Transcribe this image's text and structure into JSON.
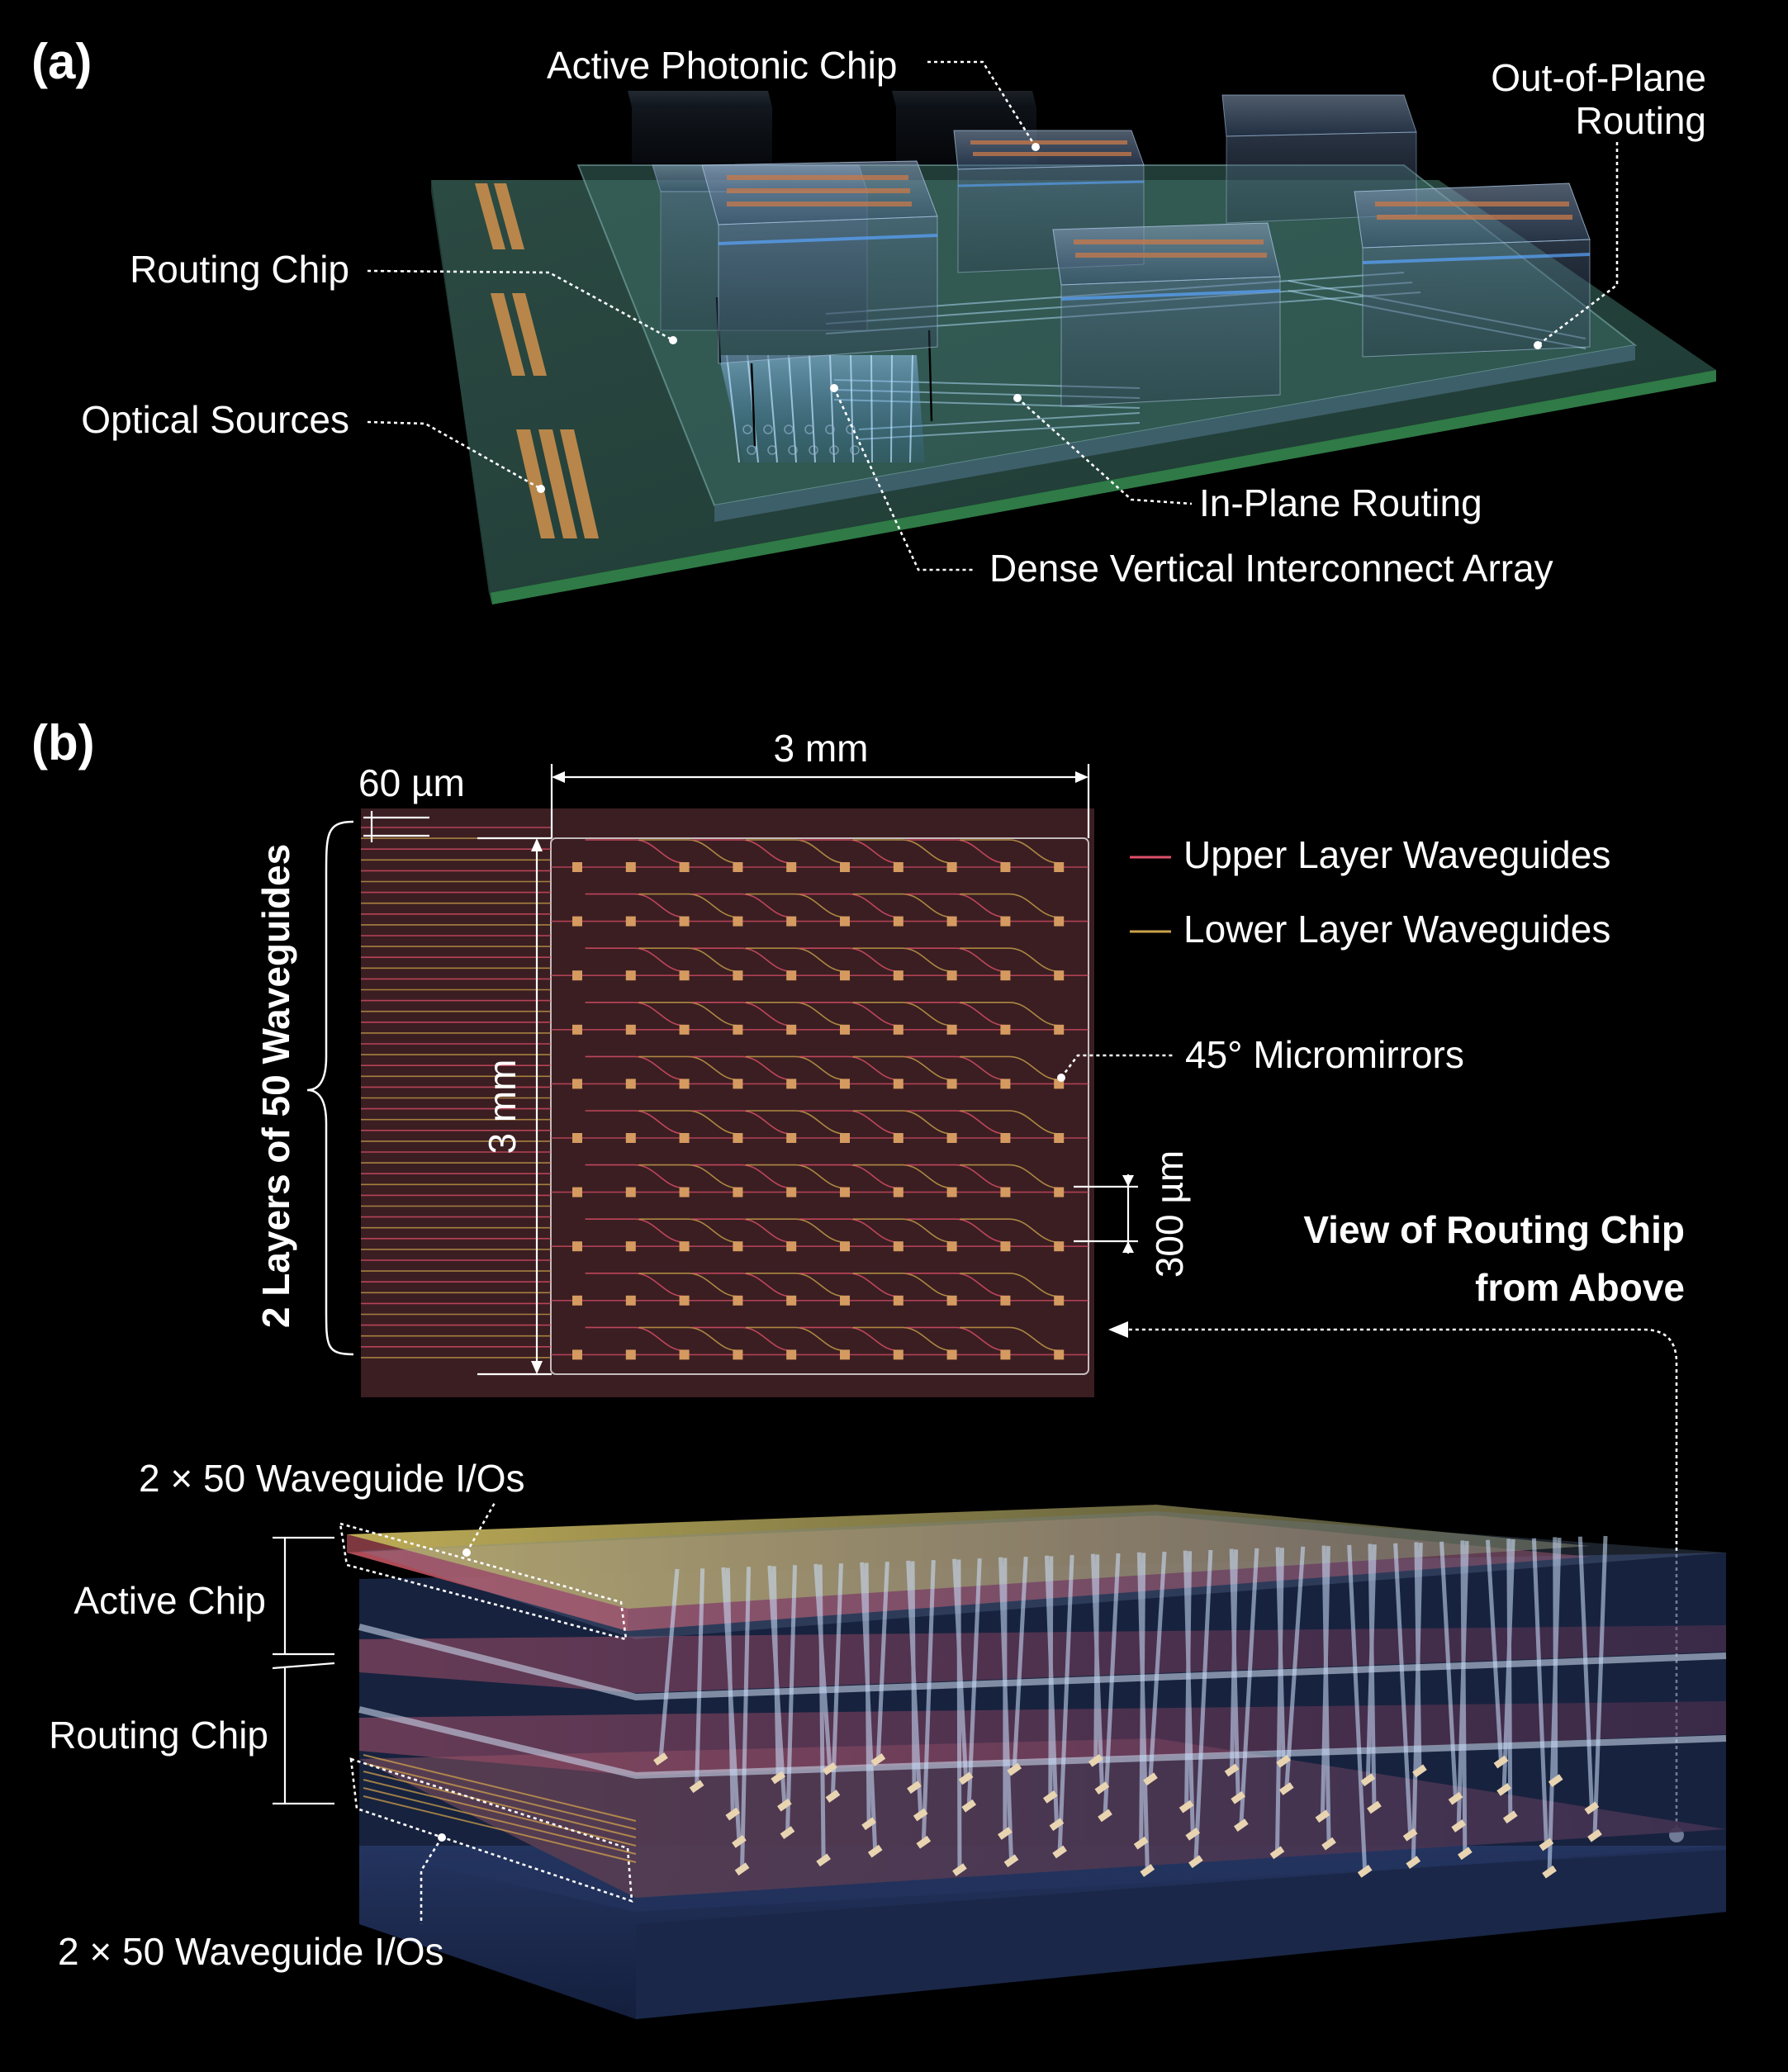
{
  "panel_a": {
    "tag": "(a)",
    "labels": {
      "active_photonic_chip": "Active Photonic Chip",
      "out_of_plane_routing_1": "Out-of-Plane",
      "out_of_plane_routing_2": "Routing",
      "routing_chip": "Routing Chip",
      "optical_sources": "Optical Sources",
      "in_plane_routing": "In-Plane Routing",
      "dense_vertical_interconnect": "Dense Vertical Interconnect Array"
    }
  },
  "panel_b": {
    "tag": "(b)",
    "dimensions": {
      "width": "3 mm",
      "height": "3 mm",
      "pitch_small": "60 µm",
      "pitch_large": "300 µm"
    },
    "side_label": "2 Layers of 50 Waveguides",
    "legend": {
      "upper": "Upper Layer Waveguides",
      "lower": "Lower Layer Waveguides",
      "mirrors": "45° Micromirrors"
    },
    "view_caption_1": "View of Routing Chip",
    "view_caption_2": "from Above",
    "stack_labels": {
      "io_top": "2 × 50 Waveguide I/Os",
      "active_chip": "Active Chip",
      "routing_chip": "Routing Chip",
      "io_bottom": "2 × 50 Waveguide I/Os"
    },
    "grid": {
      "rows": 10,
      "cols": 10
    }
  },
  "colors": {
    "upper_waveguide": "#e0506a",
    "lower_waveguide": "#c9a24a",
    "mirror": "#d49a60",
    "chip_face": "#3b1e22",
    "pcb": "#2f5a4c",
    "chip_glass": "#6a86a8"
  }
}
